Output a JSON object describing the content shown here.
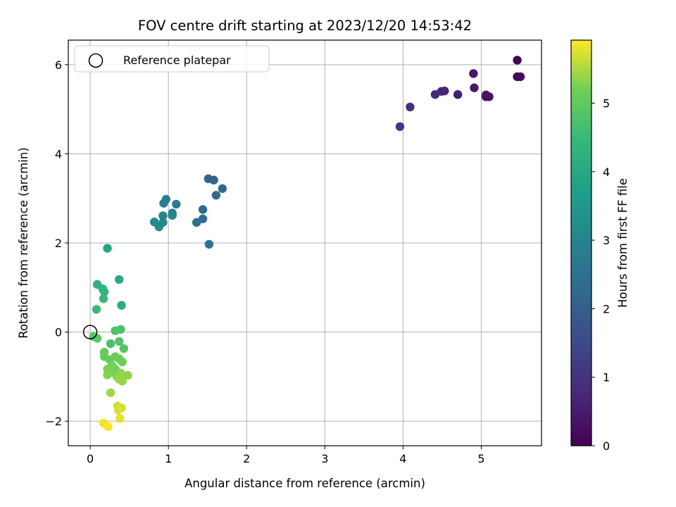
{
  "chart_data": {
    "type": "scatter",
    "title": "FOV centre drift starting at 2023/12/20 14:53:42",
    "xlabel": "Angular distance from reference (arcmin)",
    "ylabel": "Rotation from reference (arcmin)",
    "xlim": [
      -0.28,
      5.77
    ],
    "ylim": [
      -2.55,
      6.55
    ],
    "xticks": [
      0,
      1,
      2,
      3,
      4,
      5
    ],
    "yticks": [
      -2,
      0,
      2,
      4,
      6
    ],
    "grid": true,
    "legend": {
      "placement": "top-left",
      "entries": [
        "Reference platepar"
      ]
    },
    "reference_point": {
      "x": 0,
      "y": 0,
      "label": "Reference platepar"
    },
    "colorbar": {
      "label": "Hours from first FF file",
      "range": [
        0,
        5.92
      ],
      "ticks": [
        0,
        1,
        2,
        3,
        4,
        5
      ],
      "colormap": "viridis"
    },
    "points": [
      {
        "x": 5.46,
        "y": 6.1,
        "c": 0.05
      },
      {
        "x": 5.46,
        "y": 5.73,
        "c": 0.1
      },
      {
        "x": 5.5,
        "y": 5.73,
        "c": 0.15
      },
      {
        "x": 5.06,
        "y": 5.28,
        "c": 0.25
      },
      {
        "x": 5.1,
        "y": 5.28,
        "c": 0.3
      },
      {
        "x": 5.06,
        "y": 5.32,
        "c": 0.35
      },
      {
        "x": 4.9,
        "y": 5.8,
        "c": 0.4
      },
      {
        "x": 4.91,
        "y": 5.48,
        "c": 0.45
      },
      {
        "x": 4.7,
        "y": 5.33,
        "c": 0.55
      },
      {
        "x": 4.53,
        "y": 5.41,
        "c": 0.65
      },
      {
        "x": 4.49,
        "y": 5.4,
        "c": 0.7
      },
      {
        "x": 4.41,
        "y": 5.33,
        "c": 0.8
      },
      {
        "x": 4.09,
        "y": 5.05,
        "c": 0.95
      },
      {
        "x": 3.96,
        "y": 4.61,
        "c": 1.05
      },
      {
        "x": 1.51,
        "y": 3.44,
        "c": 2.1
      },
      {
        "x": 1.58,
        "y": 3.41,
        "c": 2.15
      },
      {
        "x": 1.69,
        "y": 3.22,
        "c": 2.2
      },
      {
        "x": 1.61,
        "y": 3.07,
        "c": 2.25
      },
      {
        "x": 1.44,
        "y": 2.75,
        "c": 2.3
      },
      {
        "x": 1.44,
        "y": 2.54,
        "c": 2.35
      },
      {
        "x": 1.36,
        "y": 2.46,
        "c": 2.4
      },
      {
        "x": 1.52,
        "y": 1.97,
        "c": 2.45
      },
      {
        "x": 1.1,
        "y": 2.87,
        "c": 2.8
      },
      {
        "x": 0.97,
        "y": 2.98,
        "c": 2.85
      },
      {
        "x": 0.94,
        "y": 2.89,
        "c": 2.9
      },
      {
        "x": 1.05,
        "y": 2.67,
        "c": 2.95
      },
      {
        "x": 1.05,
        "y": 2.62,
        "c": 3.0
      },
      {
        "x": 0.93,
        "y": 2.61,
        "c": 3.05
      },
      {
        "x": 0.93,
        "y": 2.46,
        "c": 3.1
      },
      {
        "x": 0.82,
        "y": 2.47,
        "c": 3.15
      },
      {
        "x": 0.88,
        "y": 2.36,
        "c": 3.2
      },
      {
        "x": 0.22,
        "y": 1.88,
        "c": 3.95
      },
      {
        "x": 0.37,
        "y": 1.18,
        "c": 4.05
      },
      {
        "x": 0.4,
        "y": 0.6,
        "c": 4.1
      },
      {
        "x": 0.09,
        "y": 1.07,
        "c": 4.3
      },
      {
        "x": 0.16,
        "y": 0.97,
        "c": 4.35
      },
      {
        "x": 0.18,
        "y": 0.9,
        "c": 4.4
      },
      {
        "x": 0.17,
        "y": 0.75,
        "c": 4.45
      },
      {
        "x": 0.08,
        "y": 0.51,
        "c": 4.5
      },
      {
        "x": 0.26,
        "y": -0.26,
        "c": 4.7
      },
      {
        "x": 0.39,
        "y": 0.06,
        "c": 4.75
      },
      {
        "x": 0.32,
        "y": 0.03,
        "c": 4.8
      },
      {
        "x": 0.37,
        "y": -0.21,
        "c": 4.85
      },
      {
        "x": 0.43,
        "y": -0.37,
        "c": 4.9
      },
      {
        "x": 0.04,
        "y": -0.1,
        "c": 4.95
      },
      {
        "x": 0.09,
        "y": -0.14,
        "c": 5.0
      },
      {
        "x": 0.18,
        "y": -0.45,
        "c": 5.05
      },
      {
        "x": 0.18,
        "y": -0.55,
        "c": 5.05
      },
      {
        "x": 0.25,
        "y": -0.62,
        "c": 5.1
      },
      {
        "x": 0.32,
        "y": -0.55,
        "c": 5.1
      },
      {
        "x": 0.37,
        "y": -0.6,
        "c": 5.15
      },
      {
        "x": 0.41,
        "y": -0.67,
        "c": 5.15
      },
      {
        "x": 0.28,
        "y": -0.75,
        "c": 5.2
      },
      {
        "x": 0.32,
        "y": -0.83,
        "c": 5.2
      },
      {
        "x": 0.22,
        "y": -0.83,
        "c": 5.25
      },
      {
        "x": 0.29,
        "y": -0.9,
        "c": 5.25
      },
      {
        "x": 0.22,
        "y": -0.96,
        "c": 5.3
      },
      {
        "x": 0.34,
        "y": -1.0,
        "c": 5.3
      },
      {
        "x": 0.39,
        "y": -0.92,
        "c": 5.35
      },
      {
        "x": 0.48,
        "y": -0.97,
        "c": 5.35
      },
      {
        "x": 0.37,
        "y": -1.06,
        "c": 5.4
      },
      {
        "x": 0.41,
        "y": -1.1,
        "c": 5.4
      },
      {
        "x": 0.26,
        "y": -1.36,
        "c": 5.45
      },
      {
        "x": 0.35,
        "y": -1.66,
        "c": 5.65
      },
      {
        "x": 0.4,
        "y": -1.7,
        "c": 5.7
      },
      {
        "x": 0.36,
        "y": -1.75,
        "c": 5.75
      },
      {
        "x": 0.38,
        "y": -1.94,
        "c": 5.8
      },
      {
        "x": 0.17,
        "y": -2.04,
        "c": 5.85
      },
      {
        "x": 0.23,
        "y": -2.12,
        "c": 5.9
      }
    ]
  }
}
